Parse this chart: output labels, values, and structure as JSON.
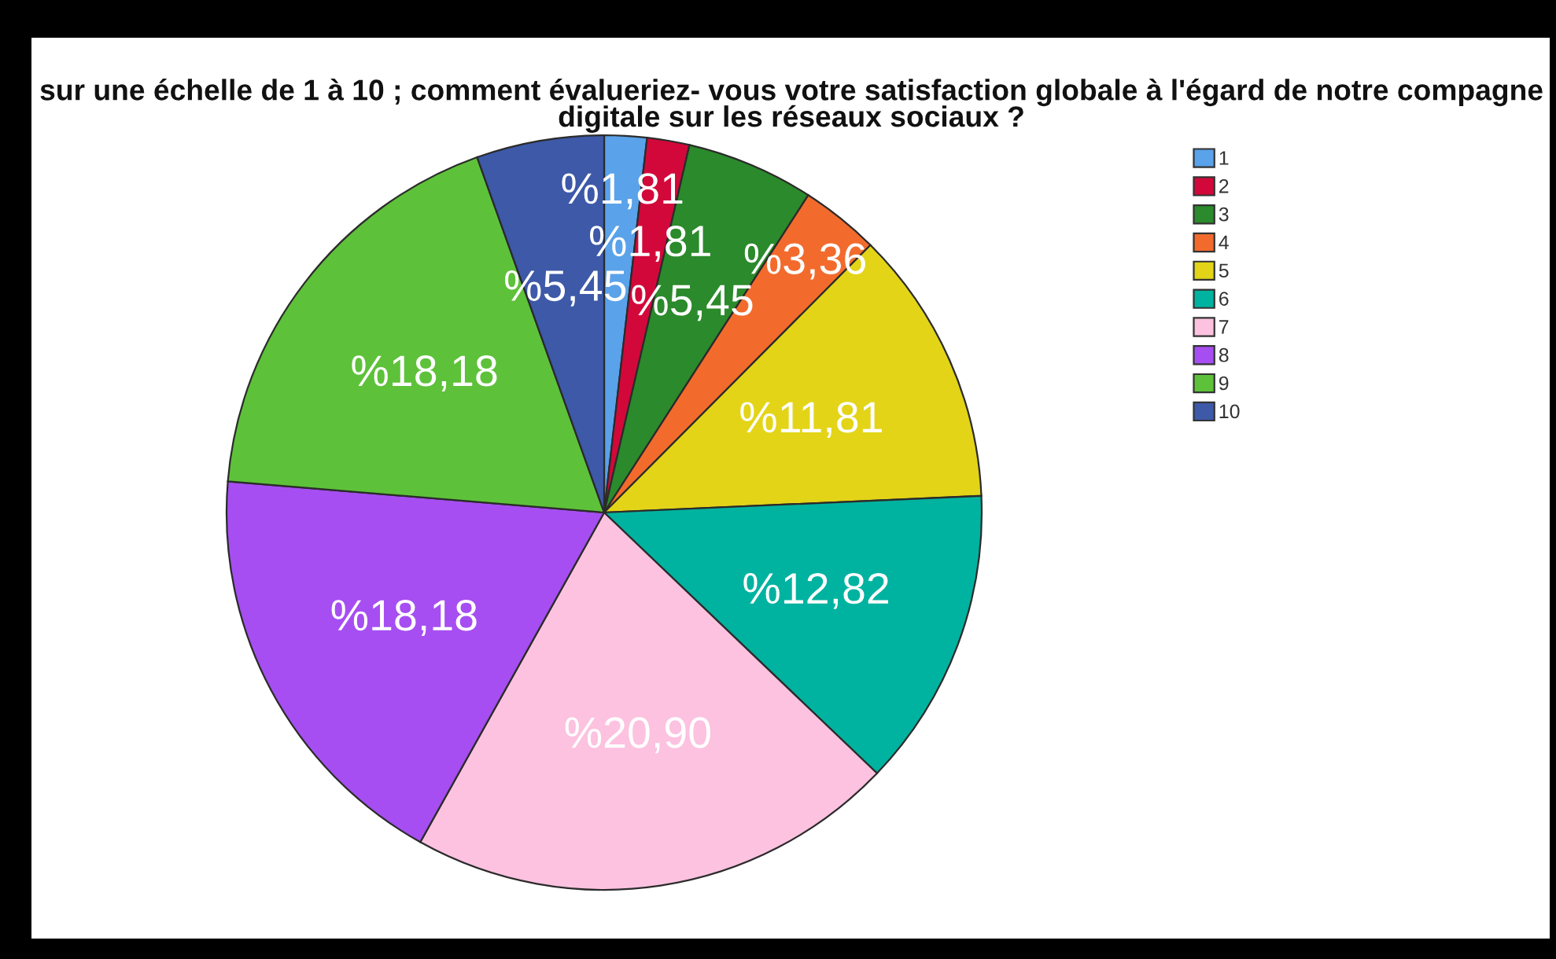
{
  "chart_data": {
    "type": "pie",
    "title": "sur une échelle de 1 à 10 ; comment évalueriez- vous votre satisfaction globale à l'égard de notre compagne\ndigitale sur les réseaux sociaux ?",
    "categories": [
      "1",
      "2",
      "3",
      "4",
      "5",
      "6",
      "7",
      "8",
      "9",
      "10"
    ],
    "values": [
      1.81,
      1.81,
      5.45,
      3.36,
      11.81,
      12.82,
      20.9,
      18.18,
      18.18,
      5.45
    ],
    "colors": [
      "#5aa2ea",
      "#d3083a",
      "#2b8a2b",
      "#f26b2d",
      "#e3d418",
      "#00b3a0",
      "#fcc2e0",
      "#a64ef2",
      "#5ec13a",
      "#3d59a8"
    ],
    "value_labels": [
      "%1,81",
      "%1,81",
      "%5,45",
      "%3,36",
      "%11,81",
      "%12,82",
      "%20,90",
      "%18,18",
      "%18,18",
      "%5,45"
    ],
    "legend": "top right"
  }
}
